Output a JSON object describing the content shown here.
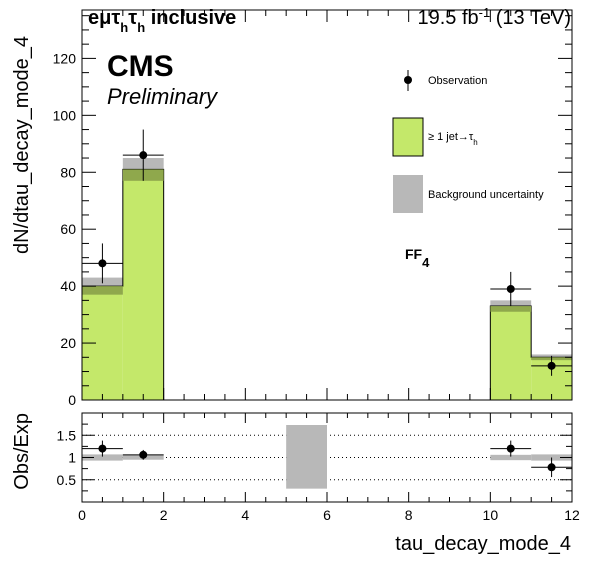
{
  "header": {
    "channel_label": "eμτhτh inclusive",
    "lumi_label": "19.5 fb⁻¹ (13 TeV)"
  },
  "labels": {
    "cms": "CMS",
    "preliminary": "Preliminary",
    "ff_label": "FF4"
  },
  "chart_data": [
    {
      "type": "bar",
      "panel": "main",
      "x_edges": [
        0,
        1,
        2,
        3,
        4,
        5,
        6,
        7,
        8,
        9,
        10,
        11,
        12
      ],
      "xlabel": "tau_decay_mode_4",
      "ylabel": "dN/dtau_decay_mode_4",
      "xlim": [
        0,
        12
      ],
      "ylim": [
        0,
        137
      ],
      "xticks": [
        0,
        2,
        4,
        6,
        8,
        10,
        12
      ],
      "yticks": [
        0,
        20,
        40,
        60,
        80,
        100,
        120
      ],
      "series": [
        {
          "name": "≥ 1 jet→τh",
          "color": "#c4e86a",
          "values": [
            40,
            81,
            0,
            0,
            0,
            0,
            0,
            0,
            0,
            0,
            33,
            15
          ]
        }
      ],
      "uncertainty": {
        "name": "Background uncertainty",
        "color": "#b8b8b8",
        "low": [
          37,
          77,
          0,
          0,
          0,
          0,
          0,
          0,
          0,
          0,
          31,
          14
        ],
        "high": [
          43,
          85,
          0,
          0,
          0,
          0,
          0,
          0,
          0,
          0,
          35,
          16
        ]
      },
      "observation": {
        "name": "Observation",
        "x": [
          0.5,
          1.5,
          10.5,
          11.5
        ],
        "y": [
          48,
          86,
          39,
          12
        ],
        "yerr": [
          7,
          9,
          6,
          3.5
        ],
        "xerr": 0.5
      },
      "legend": "top-right"
    },
    {
      "type": "scatter",
      "panel": "ratio",
      "ylabel": "Obs/Exp",
      "xlabel": "tau_decay_mode_4",
      "xlim": [
        0,
        12
      ],
      "ylim": [
        0,
        2
      ],
      "yticks": [
        0.5,
        1,
        1.5
      ],
      "xticks": [
        0,
        2,
        4,
        6,
        8,
        10,
        12
      ],
      "grid": "dotted horizontal at 0.5, 1, 1.5",
      "uncertainty_bands": [
        {
          "x0": 0,
          "x1": 1,
          "low": 0.93,
          "high": 1.07
        },
        {
          "x0": 1,
          "x1": 2,
          "low": 0.95,
          "high": 1.05
        },
        {
          "x0": 5,
          "x1": 6,
          "low": 0.3,
          "high": 1.73
        },
        {
          "x0": 10,
          "x1": 11,
          "low": 0.94,
          "high": 1.06
        },
        {
          "x0": 11,
          "x1": 12,
          "low": 0.93,
          "high": 1.07
        }
      ],
      "points": {
        "x": [
          0.5,
          1.5,
          10.5,
          11.5
        ],
        "y": [
          1.2,
          1.06,
          1.2,
          0.78
        ],
        "yerr": [
          0.18,
          0.11,
          0.18,
          0.22
        ],
        "xerr": 0.5
      }
    }
  ]
}
